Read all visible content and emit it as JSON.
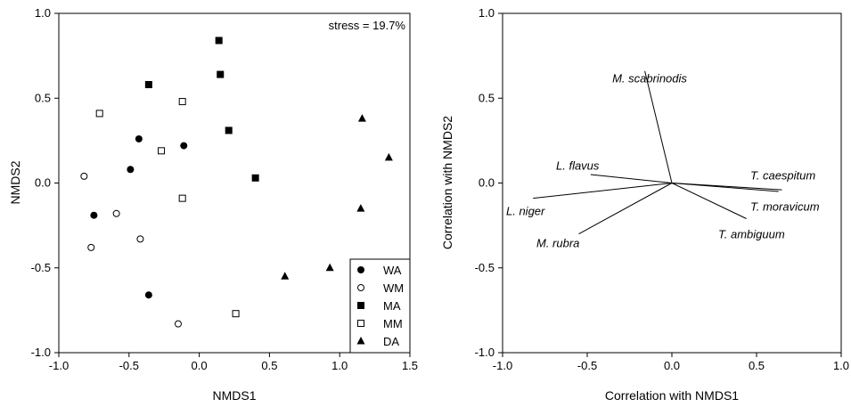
{
  "chart_data": [
    {
      "type": "scatter",
      "title": "",
      "xlabel": "NMDS1",
      "ylabel": "NMDS2",
      "xlim": [
        -1.0,
        1.5
      ],
      "ylim": [
        -1.0,
        1.0
      ],
      "xticks": [
        -1.0,
        -0.5,
        0.0,
        0.5,
        1.0,
        1.5
      ],
      "yticks": [
        -1.0,
        -0.5,
        0.0,
        0.5,
        1.0
      ],
      "xtick_labels": [
        "-1.0",
        "-0.5",
        "0.0",
        "0.5",
        "1.0",
        "1.5"
      ],
      "ytick_labels": [
        "-1.0",
        "-0.5",
        "0.0",
        "0.5",
        "1.0"
      ],
      "grid": false,
      "annotation": "stress = 19.7%",
      "legend_position": "bottom-right",
      "series": [
        {
          "name": "WA",
          "marker": "circle-filled",
          "color": "#000000",
          "points": [
            [
              -0.43,
              0.26
            ],
            [
              -0.11,
              0.22
            ],
            [
              -0.49,
              0.08
            ],
            [
              -0.75,
              -0.19
            ],
            [
              -0.36,
              -0.66
            ]
          ]
        },
        {
          "name": "WM",
          "marker": "circle-open",
          "color": "#000000",
          "points": [
            [
              -0.82,
              0.04
            ],
            [
              -0.59,
              -0.18
            ],
            [
              -0.42,
              -0.33
            ],
            [
              -0.77,
              -0.38
            ],
            [
              -0.15,
              -0.83
            ]
          ]
        },
        {
          "name": "MA",
          "marker": "square-filled",
          "color": "#000000",
          "points": [
            [
              0.14,
              0.84
            ],
            [
              0.15,
              0.64
            ],
            [
              -0.36,
              0.58
            ],
            [
              0.21,
              0.31
            ],
            [
              0.4,
              0.03
            ]
          ]
        },
        {
          "name": "MM",
          "marker": "square-open",
          "color": "#000000",
          "points": [
            [
              -0.71,
              0.41
            ],
            [
              -0.12,
              0.48
            ],
            [
              -0.27,
              0.19
            ],
            [
              -0.12,
              -0.09
            ],
            [
              0.26,
              -0.77
            ]
          ]
        },
        {
          "name": "DA",
          "marker": "triangle-filled",
          "color": "#000000",
          "points": [
            [
              1.16,
              0.38
            ],
            [
              1.35,
              0.15
            ],
            [
              1.15,
              -0.15
            ],
            [
              0.93,
              -0.5
            ],
            [
              0.61,
              -0.55
            ]
          ]
        }
      ]
    },
    {
      "type": "biplot",
      "title": "",
      "xlabel": "Correlation with NMDS1",
      "ylabel": "Correlation with NMDS2",
      "xlim": [
        -1.0,
        1.0
      ],
      "ylim": [
        -1.0,
        1.0
      ],
      "xticks": [
        -1.0,
        -0.5,
        0.0,
        0.5,
        1.0
      ],
      "yticks": [
        -1.0,
        -0.5,
        0.0,
        0.5,
        1.0
      ],
      "xtick_labels": [
        "-1.0",
        "-0.5",
        "0.0",
        "0.5",
        "1.0"
      ],
      "ytick_labels": [
        "-1.0",
        "-0.5",
        "0.0",
        "0.5",
        "1.0"
      ],
      "grid": false,
      "vectors": [
        {
          "name": "M. scabrinodis",
          "x": -0.16,
          "y": 0.66
        },
        {
          "name": "L. flavus",
          "x": -0.48,
          "y": 0.05
        },
        {
          "name": "L. niger",
          "x": -0.82,
          "y": -0.09
        },
        {
          "name": "M. rubra",
          "x": -0.55,
          "y": -0.3
        },
        {
          "name": "T. caespitum",
          "x": 0.65,
          "y": -0.04
        },
        {
          "name": "T. moravicum",
          "x": 0.63,
          "y": -0.05
        },
        {
          "name": "T. ambiguum",
          "x": 0.44,
          "y": -0.21
        }
      ]
    }
  ]
}
